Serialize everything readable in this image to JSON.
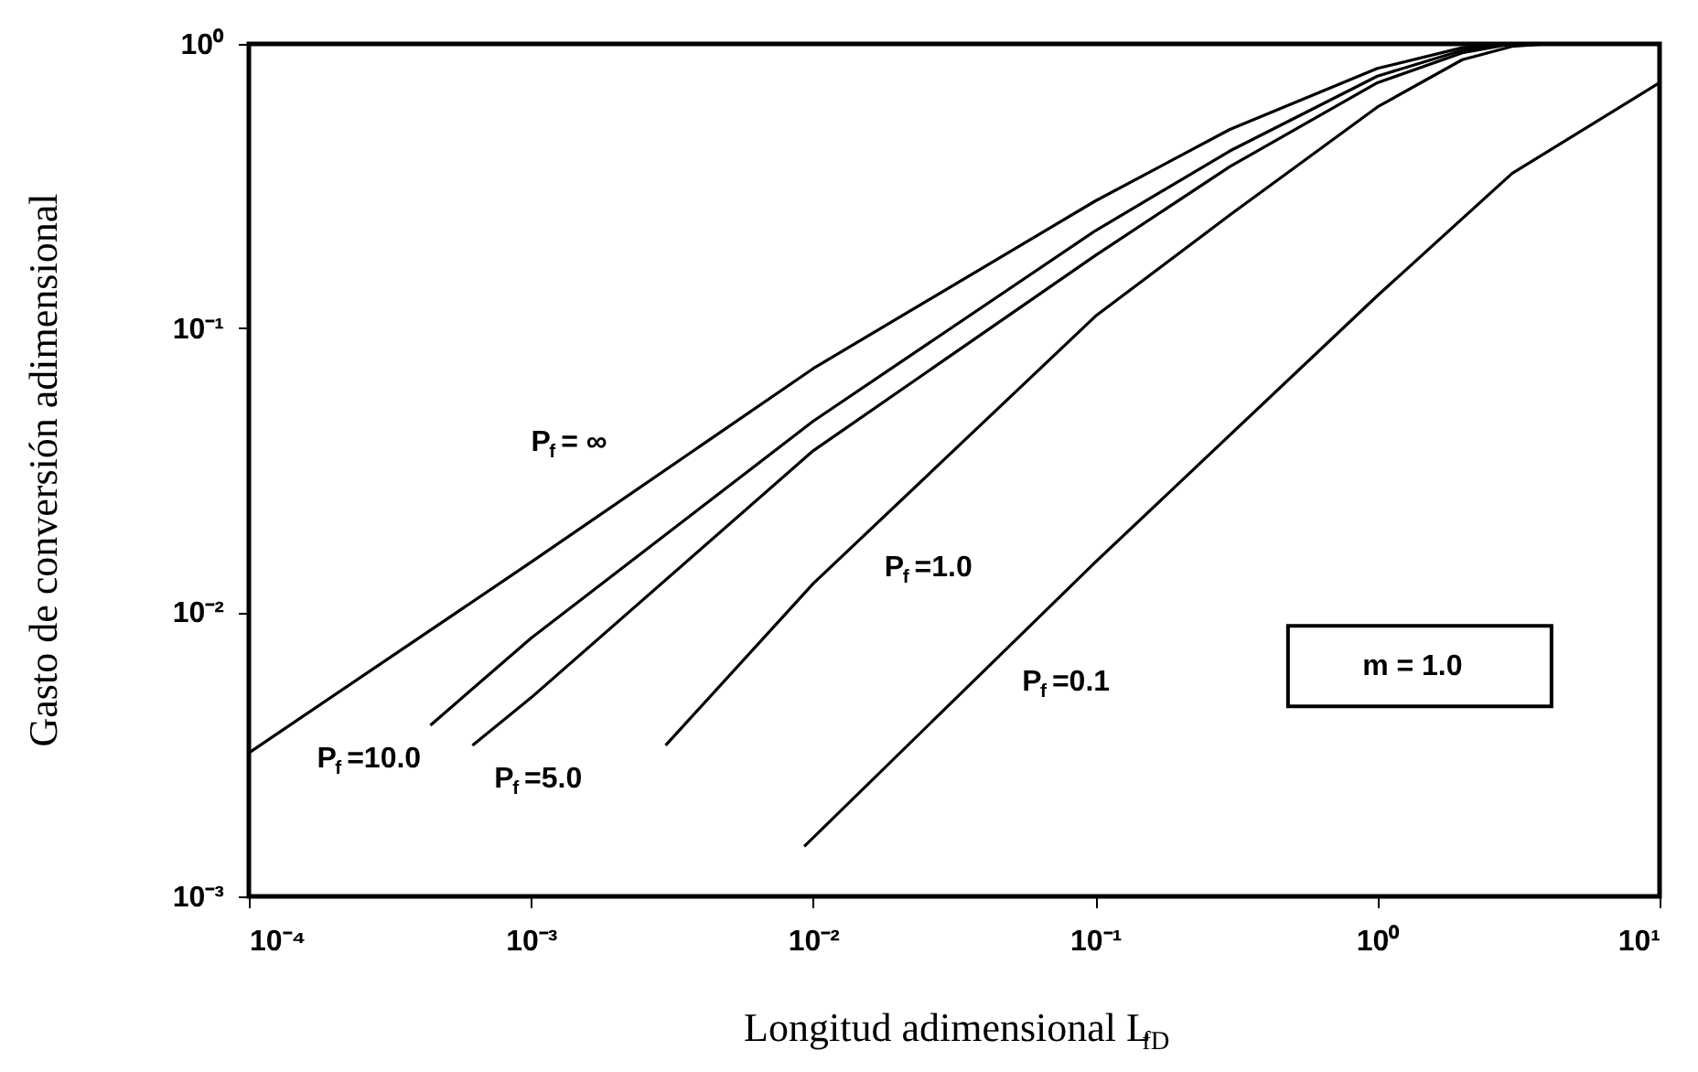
{
  "chart_data": {
    "type": "line",
    "xlabel": "Longitud adimensional L$_{fD}$",
    "ylabel": "Gasto de conversión adimensional",
    "series": [
      {
        "name": "P$_{f}$ = ∞",
        "color": "#000000",
        "x": [
          0.0001,
          0.001,
          0.01,
          0.1,
          0.3,
          1,
          2,
          3
        ],
        "values": [
          0.0032,
          0.015,
          0.072,
          0.28,
          0.5,
          0.82,
          0.97,
          1.0
        ]
      },
      {
        "name": "P$_{f}$=10.0",
        "color": "#000000",
        "x": [
          0.00044,
          0.001,
          0.01,
          0.1,
          0.3,
          1,
          2,
          3
        ],
        "values": [
          0.004,
          0.0081,
          0.047,
          0.22,
          0.42,
          0.77,
          0.95,
          1.0
        ]
      },
      {
        "name": "P$_{f}$=5.0",
        "color": "#000000",
        "x": [
          0.00062,
          0.001,
          0.01,
          0.1,
          0.3,
          1,
          2,
          3
        ],
        "values": [
          0.0034,
          0.005,
          0.037,
          0.18,
          0.37,
          0.73,
          0.93,
          1.0
        ]
      },
      {
        "name": "P$_{f}$=1.0",
        "color": "#000000",
        "x": [
          0.003,
          0.01,
          0.1,
          0.3,
          1,
          2,
          3,
          4
        ],
        "values": [
          0.0034,
          0.0126,
          0.11,
          0.25,
          0.6,
          0.88,
          0.98,
          1.0
        ]
      },
      {
        "name": "P$_{f}$=0.1",
        "color": "#000000",
        "x": [
          0.0093,
          0.1,
          1,
          3,
          10
        ],
        "values": [
          0.0015,
          0.015,
          0.13,
          0.35,
          0.73
        ]
      }
    ],
    "xlim": [
      0.0001,
      10
    ],
    "ylim": [
      0.001,
      1
    ],
    "xticks": [
      {
        "value": 0.0001,
        "label": "10⁻⁴"
      },
      {
        "value": 0.001,
        "label": "10⁻³"
      },
      {
        "value": 0.01,
        "label": "10⁻²"
      },
      {
        "value": 0.1,
        "label": "10⁻¹"
      },
      {
        "value": 1,
        "label": "10⁰"
      },
      {
        "value": 10,
        "label": "10¹"
      }
    ],
    "yticks": [
      {
        "value": 0.001,
        "label": "10⁻³"
      },
      {
        "value": 0.01,
        "label": "10⁻²"
      },
      {
        "value": 0.1,
        "label": "10⁻¹"
      },
      {
        "value": 1,
        "label": "10⁰"
      }
    ],
    "log": "xy",
    "grid": false,
    "legend": false,
    "marker": "none",
    "line_style": "solid",
    "annotations": [
      "m = 1.0"
    ]
  }
}
